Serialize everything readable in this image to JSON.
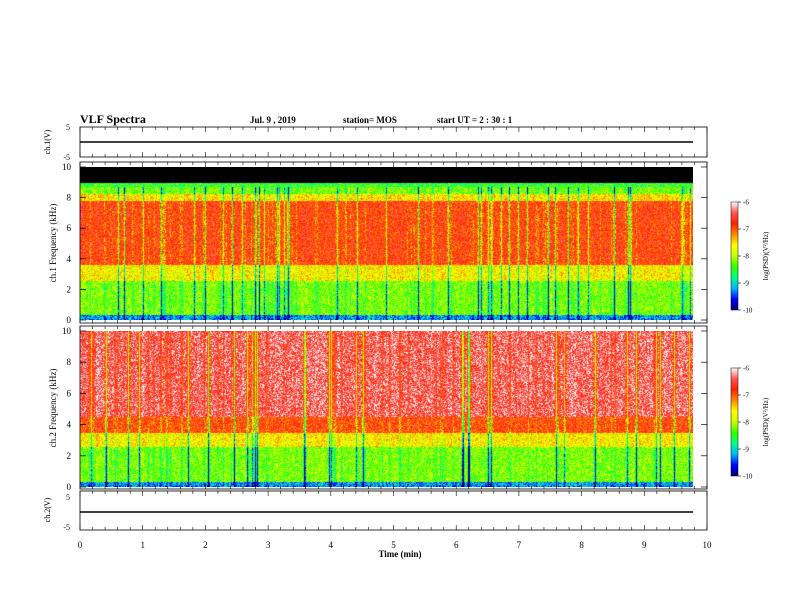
{
  "header": {
    "title": "VLF Spectra",
    "date": "Jul. 9 , 2019",
    "station": "station= MOS",
    "start_ut": "start UT = 2 : 30 : 1"
  },
  "colors": {
    "spectrum_scale": [
      "#000070",
      "#0000ff",
      "#00b4ff",
      "#00ff88",
      "#33ff00",
      "#c8ff00",
      "#ffff00",
      "#ff8800",
      "#ff2200",
      "#ff5555",
      "#ffffff"
    ],
    "trace": "#000000",
    "saturated_band": "#000000"
  },
  "chart_data": [
    {
      "type": "line",
      "panel": "ch1-waveform",
      "ylabel": "ch.1(V)",
      "ylim": [
        -5,
        5
      ],
      "yticks": [
        "5",
        "-5"
      ],
      "series": [
        {
          "x": [
            0,
            9.85
          ],
          "y": [
            0,
            0
          ]
        }
      ]
    },
    {
      "type": "heatmap",
      "panel": "ch1-spectrogram",
      "ylabel": "ch.1 Frequency (kHz)",
      "ylim": [
        0,
        10
      ],
      "yticks": [
        "0",
        "2",
        "4",
        "6",
        "8",
        "10"
      ],
      "xlim": [
        0,
        10
      ],
      "data_xmax": 9.85,
      "colorbar": {
        "label": "log(PSD)(V²/Hz)",
        "range": [
          -10,
          -6
        ],
        "ticks": [
          "-6",
          "-7",
          "-8",
          "-9",
          "-10"
        ]
      }
    },
    {
      "type": "heatmap",
      "panel": "ch2-spectrogram",
      "ylabel": "ch.2 Frequency (kHz)",
      "ylim": [
        0,
        10
      ],
      "yticks": [
        "0",
        "2",
        "4",
        "6",
        "8",
        "10"
      ],
      "xlim": [
        0,
        10
      ],
      "data_xmax": 9.85,
      "colorbar": {
        "label": "log(PSD)(V²/Hz)",
        "range": [
          -10,
          -6
        ],
        "ticks": [
          "-6",
          "-7",
          "-8",
          "-9",
          "-10"
        ]
      }
    },
    {
      "type": "line",
      "panel": "ch2-waveform",
      "ylabel": "ch.2(V)",
      "ylim": [
        -5,
        5
      ],
      "yticks": [
        "5",
        "-5"
      ],
      "series": [
        {
          "x": [
            0,
            9.85
          ],
          "y": [
            -1,
            -1
          ]
        }
      ]
    }
  ],
  "xaxis": {
    "label": "Time (min)",
    "ticks": [
      "0",
      "1",
      "2",
      "3",
      "4",
      "5",
      "6",
      "7",
      "8",
      "9",
      "10"
    ]
  }
}
